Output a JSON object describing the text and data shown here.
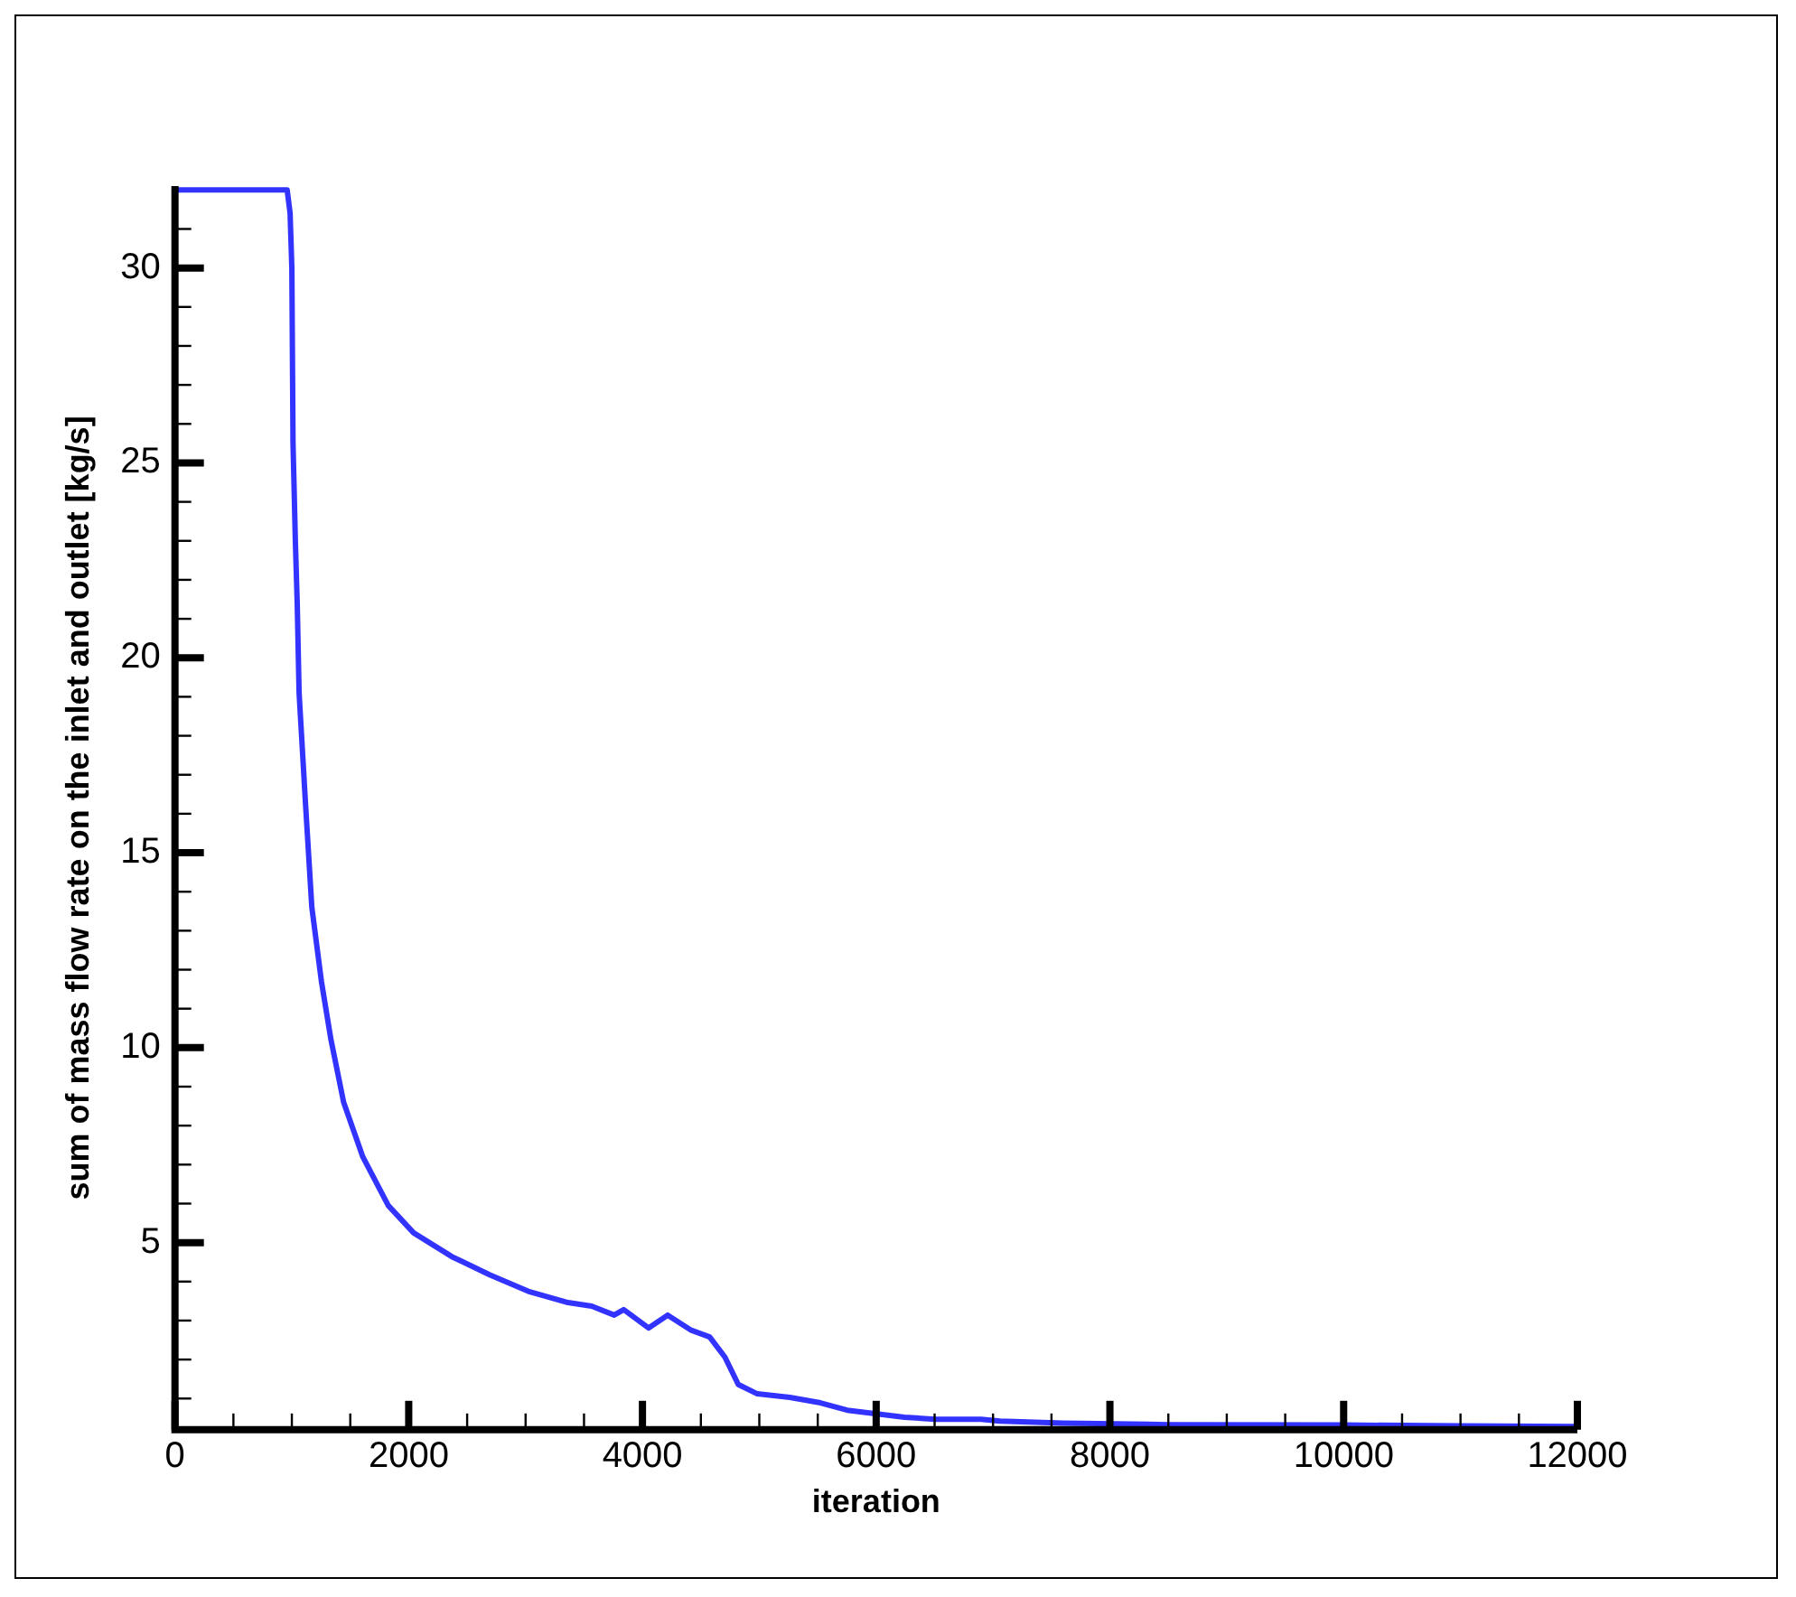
{
  "chart_data": {
    "type": "line",
    "xlabel": "iteration",
    "ylabel": "sum of mass flow rate on the inlet and outlet [kg/s]",
    "xlim": [
      0,
      12000
    ],
    "ylim": [
      0.2,
      32.1
    ],
    "xticks": [
      0,
      {
        "value": 500,
        "label": null
      },
      {
        "value": 1000,
        "label": null
      },
      {
        "value": 1500,
        "label": null
      },
      2000,
      {
        "value": 2500,
        "label": null
      },
      {
        "value": 3000,
        "label": null
      },
      {
        "value": 3500,
        "label": null
      },
      4000,
      {
        "value": 4500,
        "label": null
      },
      {
        "value": 5000,
        "label": null
      },
      {
        "value": 5500,
        "label": null
      },
      6000,
      {
        "value": 6500,
        "label": null
      },
      {
        "value": 7000,
        "label": null
      },
      {
        "value": 7500,
        "label": null
      },
      8000,
      {
        "value": 8500,
        "label": null
      },
      {
        "value": 9000,
        "label": null
      },
      {
        "value": 9500,
        "label": null
      },
      10000,
      {
        "value": 10500,
        "label": null
      },
      {
        "value": 11000,
        "label": null
      },
      {
        "value": 11500,
        "label": null
      },
      12000
    ],
    "yticks": [
      {
        "value": 1,
        "label": null
      },
      {
        "value": 2,
        "label": null
      },
      {
        "value": 3,
        "label": null
      },
      {
        "value": 4,
        "label": null
      },
      5,
      {
        "value": 6,
        "label": null
      },
      {
        "value": 7,
        "label": null
      },
      {
        "value": 8,
        "label": null
      },
      {
        "value": 9,
        "label": null
      },
      10,
      {
        "value": 11,
        "label": null
      },
      {
        "value": 12,
        "label": null
      },
      {
        "value": 13,
        "label": null
      },
      {
        "value": 14,
        "label": null
      },
      15,
      {
        "value": 16,
        "label": null
      },
      {
        "value": 17,
        "label": null
      },
      {
        "value": 18,
        "label": null
      },
      {
        "value": 19,
        "label": null
      },
      20,
      {
        "value": 21,
        "label": null
      },
      {
        "value": 22,
        "label": null
      },
      {
        "value": 23,
        "label": null
      },
      {
        "value": 24,
        "label": null
      },
      25,
      {
        "value": 26,
        "label": null
      },
      {
        "value": 27,
        "label": null
      },
      {
        "value": 28,
        "label": null
      },
      {
        "value": 29,
        "label": null
      },
      30,
      {
        "value": 31,
        "label": null
      }
    ],
    "grid": false,
    "legend": false,
    "marker": "none",
    "line_style": "solid",
    "series": [
      {
        "color": "#3333ff",
        "x": [
          0,
          960,
          985,
          1000,
          1010,
          1030,
          1046,
          1062,
          1116,
          1171,
          1253,
          1335,
          1443,
          1607,
          1825,
          2042,
          2369,
          2696,
          3023,
          3350,
          3566,
          3758,
          3840,
          4052,
          4216,
          4412,
          4575,
          4706,
          4820,
          4983,
          5261,
          5523,
          5752,
          6242,
          6503,
          6896,
          7059,
          7598,
          8500,
          10000,
          11000,
          12000
        ],
        "values": [
          32,
          32,
          31.4,
          30,
          25.5,
          23,
          21.4,
          19.1,
          16.3,
          13.6,
          11.7,
          10.2,
          8.6,
          7.2,
          5.95,
          5.25,
          4.64,
          4.17,
          3.75,
          3.47,
          3.37,
          3.14,
          3.28,
          2.81,
          3.14,
          2.76,
          2.58,
          2.06,
          1.36,
          1.12,
          1.03,
          0.89,
          0.7,
          0.52,
          0.47,
          0.47,
          0.42,
          0.37,
          0.33,
          0.32,
          0.3,
          0.28
        ]
      }
    ]
  }
}
